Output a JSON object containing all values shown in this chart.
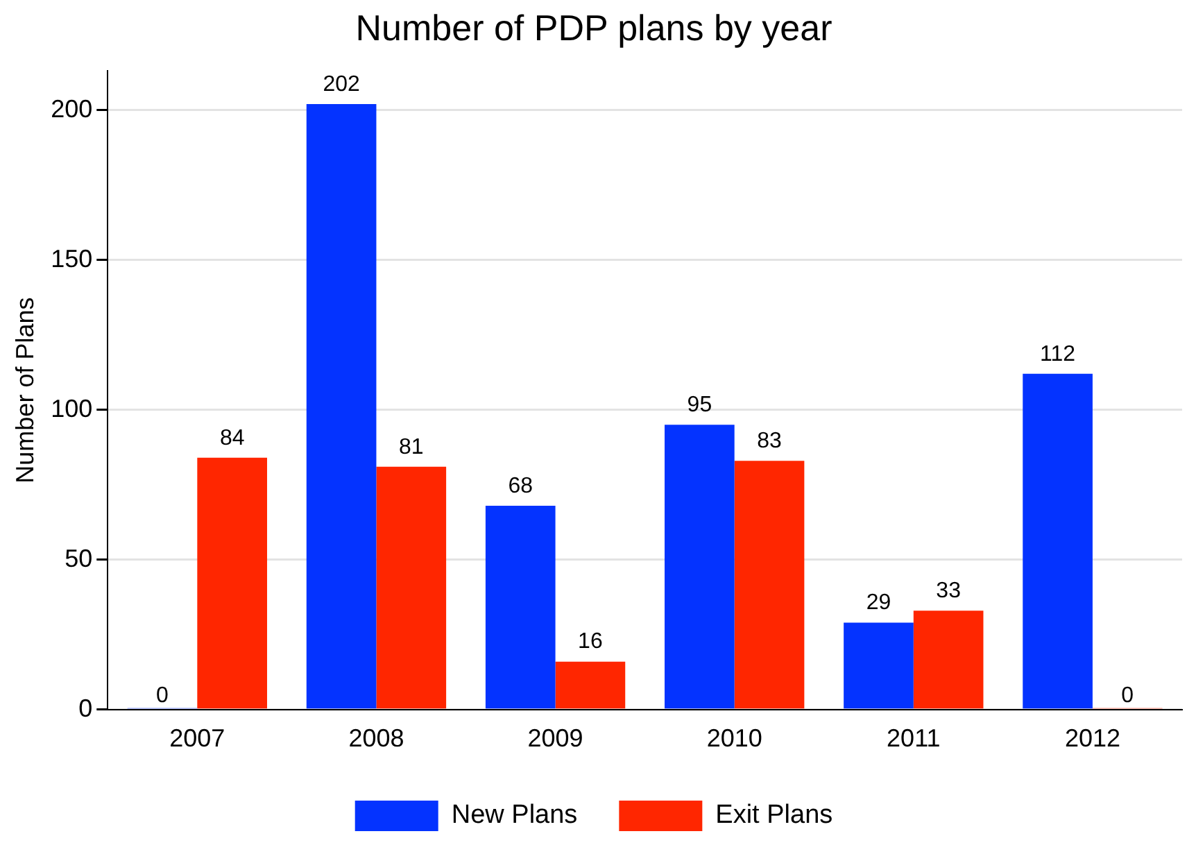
{
  "chart_data": {
    "type": "bar",
    "title": "Number of PDP plans by year",
    "ylabel": "Number of Plans",
    "categories": [
      "2007",
      "2008",
      "2009",
      "2010",
      "2011",
      "2012"
    ],
    "series": [
      {
        "name": "New Plans",
        "color": "#0433ff",
        "values": [
          0,
          202,
          68,
          95,
          29,
          112
        ]
      },
      {
        "name": "Exit Plans",
        "color": "#ff2600",
        "values": [
          84,
          81,
          16,
          83,
          33,
          0
        ]
      }
    ],
    "ylim": [
      0,
      213
    ],
    "yticks": [
      0,
      50,
      100,
      150,
      200
    ],
    "grid": "y",
    "legend": "bottom",
    "data_labels": true
  }
}
